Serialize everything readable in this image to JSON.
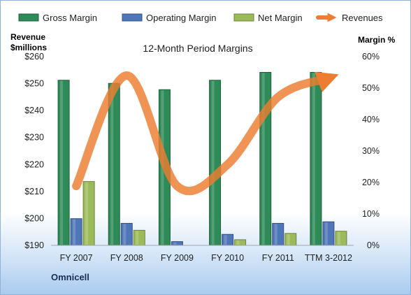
{
  "chart_data": {
    "type": "bar",
    "title": "12-Month Period Margins",
    "categories": [
      "FY 2007",
      "FY 2008",
      "FY 2009",
      "FY 2010",
      "FY 2011",
      "TTM 3-2012"
    ],
    "left_axis": {
      "label_line1": "Revenue",
      "label_line2": "$millions",
      "min": 190,
      "max": 260,
      "step": 10,
      "tick_labels": [
        "$190",
        "$200",
        "$210",
        "$220",
        "$230",
        "$240",
        "$250",
        "$260"
      ]
    },
    "right_axis": {
      "label": "Margin %",
      "min": 0,
      "max": 60,
      "step": 10,
      "tick_labels": [
        "0%",
        "10%",
        "20%",
        "30%",
        "40%",
        "50%",
        "60%"
      ]
    },
    "series": [
      {
        "name": "Gross Margin",
        "axis": "right",
        "kind": "bar",
        "color": "#2e8b57",
        "values": [
          52.5,
          51.5,
          49.5,
          52.5,
          55.0,
          55.0
        ]
      },
      {
        "name": "Operating Margin",
        "axis": "right",
        "kind": "bar",
        "color": "#4f76b8",
        "values": [
          8.5,
          7.0,
          1.2,
          3.5,
          7.0,
          7.5
        ]
      },
      {
        "name": "Net Margin",
        "axis": "right",
        "kind": "bar",
        "color": "#9bbb59",
        "values": [
          20.3,
          4.8,
          0.0,
          1.8,
          3.8,
          4.5
        ]
      },
      {
        "name": "Revenues",
        "axis": "left",
        "kind": "line",
        "color": "#ed7d31",
        "values": [
          212,
          253,
          212,
          220,
          245,
          252
        ]
      }
    ],
    "legend_position": "top",
    "grid": false
  },
  "footer": {
    "brand": "Omnicell"
  }
}
